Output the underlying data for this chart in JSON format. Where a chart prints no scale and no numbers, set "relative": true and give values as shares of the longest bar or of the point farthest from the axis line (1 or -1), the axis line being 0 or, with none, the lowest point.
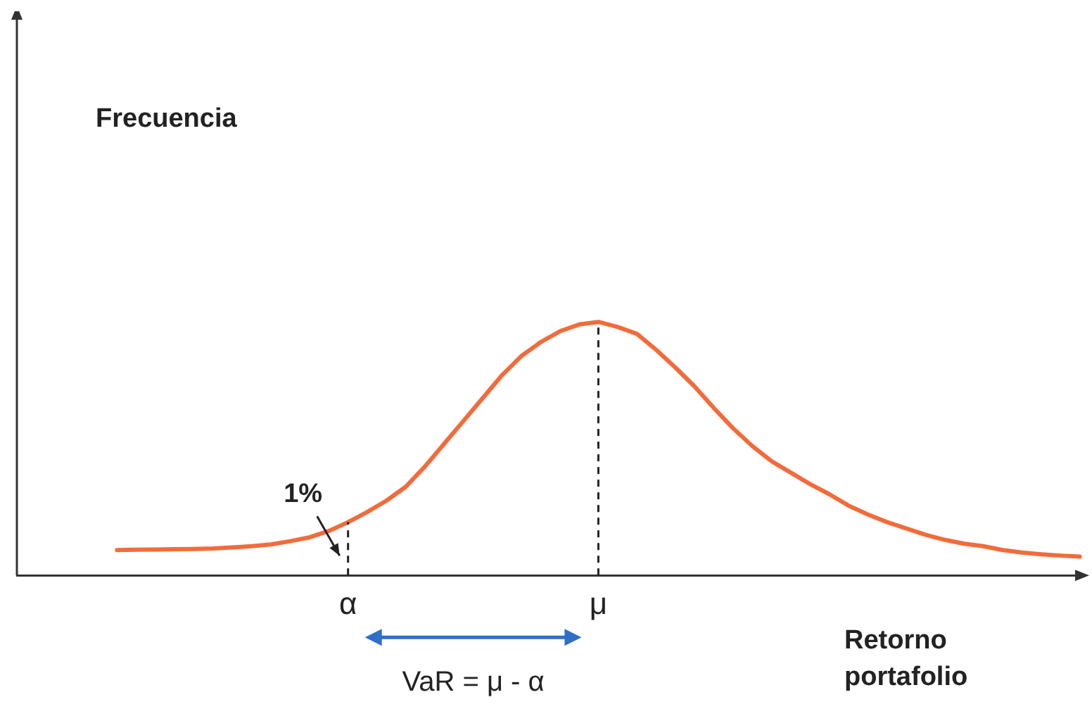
{
  "chart_data": {
    "type": "line",
    "relative": true,
    "xlabel": "Retorno portafolio",
    "color": "#f26b3a",
    "categories": [
      null,
      null,
      null,
      null,
      null,
      null,
      null,
      null,
      null,
      null,
      null,
      null,
      "α",
      null,
      null,
      null,
      null,
      null,
      null,
      null,
      null,
      null,
      null,
      null,
      null,
      "μ",
      null,
      null,
      null,
      null,
      null,
      null,
      null,
      null,
      null,
      null,
      null,
      null,
      null,
      null,
      null,
      null,
      null,
      null,
      null,
      null,
      null,
      null,
      null,
      null,
      null
    ],
    "values": [
      0.1,
      0.101,
      0.102,
      0.103,
      0.104,
      0.106,
      0.11,
      0.115,
      0.122,
      0.135,
      0.15,
      0.175,
      0.21,
      0.25,
      0.295,
      0.35,
      0.43,
      0.52,
      0.61,
      0.7,
      0.79,
      0.865,
      0.92,
      0.963,
      0.99,
      1,
      0.98,
      0.953,
      0.89,
      0.82,
      0.745,
      0.66,
      0.58,
      0.51,
      0.45,
      0.405,
      0.36,
      0.32,
      0.275,
      0.24,
      0.21,
      0.185,
      0.16,
      0.14,
      0.125,
      0.115,
      0.1,
      0.09,
      0.083,
      0.078,
      0.074
    ],
    "ref_lines": [
      {
        "axis": "x",
        "value": "α",
        "line_style": "dashed",
        "color": "#222222"
      },
      {
        "axis": "x",
        "value": "μ",
        "line_style": "dashed",
        "color": "#222222"
      }
    ],
    "annotations": [
      "1%",
      "VaR = μ - α",
      "Frecuencia"
    ]
  }
}
